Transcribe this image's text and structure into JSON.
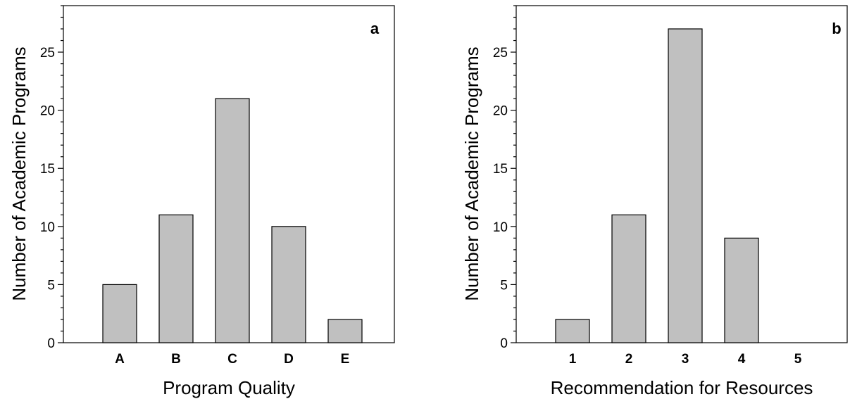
{
  "chart_data": [
    {
      "type": "bar",
      "panel_label": "a",
      "categories": [
        "A",
        "B",
        "C",
        "D",
        "E"
      ],
      "values": [
        5,
        11,
        21,
        10,
        2
      ],
      "xlabel": "Program Quality",
      "ylabel": "Number of Academic Programs",
      "ylim": [
        0,
        29
      ],
      "yticks": [
        0,
        5,
        10,
        15,
        20,
        25
      ],
      "grid": false,
      "bar_color": "#c0c0c0"
    },
    {
      "type": "bar",
      "panel_label": "b",
      "categories": [
        "1",
        "2",
        "3",
        "4",
        "5"
      ],
      "values": [
        2,
        11,
        27,
        9,
        0
      ],
      "xlabel": "Recommendation for Resources",
      "ylabel": "Number of Academic Programs",
      "ylim": [
        0,
        29
      ],
      "yticks": [
        0,
        5,
        10,
        15,
        20,
        25
      ],
      "grid": false,
      "bar_color": "#c0c0c0"
    }
  ]
}
